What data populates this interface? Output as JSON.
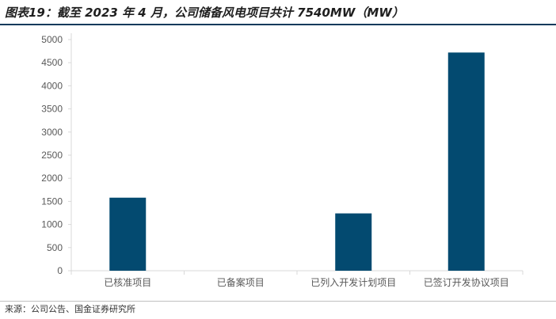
{
  "header": {
    "title": "图表19：截至 2023 年 4 月，公司储备风电项目共计 7540MW（MW）"
  },
  "footer": {
    "source": "来源：公司公告、国金证券研究所"
  },
  "colors": {
    "bar": "#034a70",
    "axis": "#d9d9d9",
    "title_rule": "#0f3a5c",
    "text": "#595959"
  },
  "chart_data": {
    "type": "bar",
    "title": "",
    "xlabel": "",
    "ylabel": "",
    "categories": [
      "已核准项目",
      "已备案项目",
      "已列入开发计划项目",
      "已签订开发协议项目"
    ],
    "values": [
      1580,
      0,
      1240,
      4720
    ],
    "ylim": [
      0,
      5000
    ],
    "yticks": [
      0,
      500,
      1000,
      1500,
      2000,
      2500,
      3000,
      3500,
      4000,
      4500,
      5000
    ],
    "grid": false,
    "legend": "none"
  }
}
